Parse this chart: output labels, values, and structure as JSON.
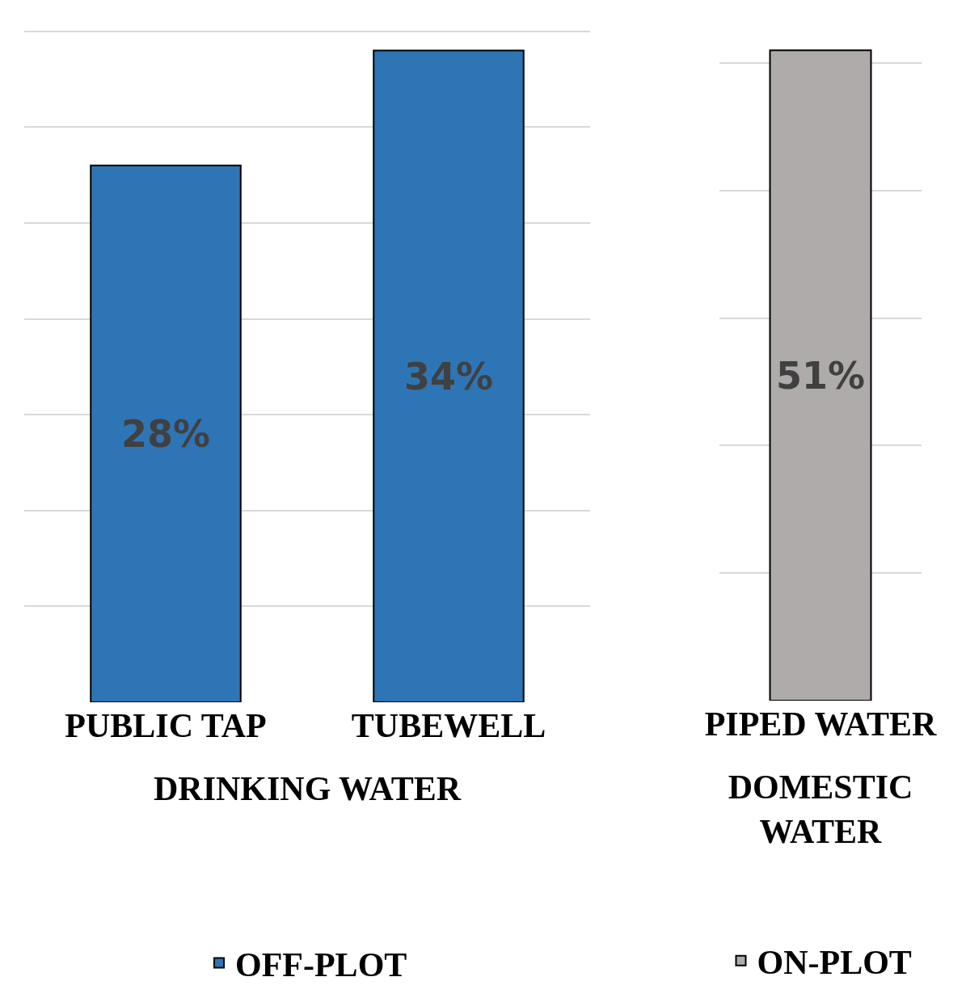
{
  "chart_data": [
    {
      "type": "bar",
      "xlabel": "DRINKING WATER",
      "categories": [
        "PUBLIC TAP",
        "TUBEWELL"
      ],
      "series": [
        {
          "name": "OFF-PLOT",
          "color": "#2e75b6",
          "values": [
            28,
            34
          ],
          "value_labels": [
            "28%",
            "34%"
          ]
        }
      ],
      "grid": "y",
      "legend": "bottom",
      "tick_labels": "x"
    },
    {
      "type": "bar",
      "xlabel": "DOMESTIC WATER",
      "categories": [
        "PIPED WATER"
      ],
      "series": [
        {
          "name": "ON-PLOT",
          "color": "#afabab",
          "values": [
            51
          ],
          "value_labels": [
            "51%"
          ]
        }
      ],
      "grid": "y",
      "legend": "bottom",
      "tick_labels": "x"
    }
  ]
}
